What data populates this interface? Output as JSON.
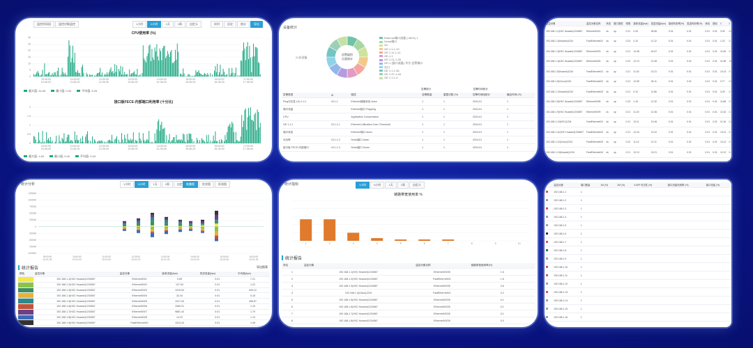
{
  "panel_cpu": {
    "top_tabs": [
      "监控时间段",
      "监控对象监控"
    ],
    "range_tabs": [
      "1小时",
      "6小时",
      "1天",
      "1周",
      "自定义"
    ],
    "range_active": 1,
    "right_tabs": [
      "实时",
      "历史",
      "统计",
      "导出"
    ],
    "chart1_title": "CPU使用率 (%)",
    "chart2_title": "接口板FECE-内部端口利用率 (十分比)",
    "legend1": [
      "最大值: 24.45",
      "最小值: 0.00",
      "平均值: 6.29"
    ],
    "legend2": [
      "最大值: 1.69",
      "最小值: 0.00",
      "平均值: 0.09"
    ],
    "xticks": [
      "10:00:00\n10-06-00",
      "11:00:00\n11-06-00",
      "12:00:00\n12-06-00",
      "13:00:00\n13-06-00",
      "14:00:00\n14-06-00",
      "15:00:00\n15-06-00",
      "16:00:00\n16-06-00",
      "17:00:00\n17-06-00"
    ],
    "y1ticks": [
      "30",
      "25",
      "20",
      "15",
      "10",
      "5",
      "0"
    ],
    "y2ticks": [
      "2",
      "1.5",
      "1",
      "0.5",
      "0"
    ],
    "colors": {
      "bar": "#1fa884",
      "tab_active": "#2a9fd6"
    }
  },
  "panel_donut": {
    "title": "设备统计",
    "center_label": "告警级别\n分类统计",
    "left_label": "21台设备",
    "legend": [
      "Ethernet端口流量 (>80%) 1",
      "Serial端口",
      "Ge",
      "GE 1.1-1.10",
      "GE 1.11-1.12",
      "GE-1.1",
      "GE 1.21-1.28",
      "GE-1 (接口流量) 华为 告警端口",
      "光口",
      "GE 1.1-1.36",
      "GE 1.37-1.48",
      "GE 1.1-1.4"
    ],
    "colors": [
      "#6fc3a8",
      "#a9d7a4",
      "#cfe39a",
      "#f3c98a",
      "#f4a7a0",
      "#e39ac6",
      "#b59be0",
      "#94b6ea",
      "#8fd3e8",
      "#76c4c4",
      "#9bd0b6",
      "#c6e1a6"
    ],
    "table_header_groups": [
      "告警统计",
      "告警数据量",
      "告警时间统计"
    ],
    "table_headers": [
      "告警类型",
      "ID",
      "描述",
      "告警数量",
      "重复次数 (%)",
      "告警时间段统计",
      "最后时间 (%)"
    ],
    "rows": [
      [
        "Ping可达性 (%) 1.2.1",
        "10.1.1",
        "Ethernet链路状态 down",
        "1",
        "1",
        "2024-01",
        "1"
      ],
      [
        "端口流量",
        "",
        "Ethernet接口 Flapping",
        "1",
        "1",
        "2024-01",
        "1"
      ],
      [
        "CPU",
        "",
        "Application Compression",
        "1",
        "1",
        "2024-01",
        "1"
      ],
      [
        "GE 1.1.1",
        "10.1.1.1",
        "Ethernet-Utilization-Over-Threshold",
        "1",
        "1",
        "2024-01",
        "1"
      ],
      [
        "端口状态",
        "",
        "Ethernet端口 down",
        "1",
        "1",
        "2024-01",
        "1"
      ],
      [
        "光功率",
        "10.1.1.2",
        "Serial接口 down",
        "1",
        "1",
        "2024-01",
        "1"
      ],
      [
        "接口板 FECE-内部端口",
        "10.1.1.3",
        "Serial接口 Down",
        "1",
        "1",
        "2024-01",
        "1"
      ]
    ]
  },
  "panel_table": {
    "headers": [
      "监控对象",
      "监控对象名称",
      "状态",
      "端口类型",
      "带宽",
      "接收流量(bps)",
      "发送流量(bps)",
      "接收利用率(%)",
      "发送利用率(%)",
      "丢包",
      "错包",
      "1",
      "2",
      "3",
      "4"
    ],
    "rows": [
      [
        "192.168.1.1(H3C Huawei)1234567",
        "Ethernet0/0/1",
        "ok",
        "up",
        "0.21",
        "0.26",
        "28.56",
        "0.01",
        "0.01",
        "0.01",
        "0.01",
        "3.09",
        "0.01"
      ],
      [
        "192.168.1.2(Huawei)1234",
        "FastEthernet0/1",
        "ok",
        "up",
        "0.23",
        "0.10",
        "11.12",
        "0.01",
        "0.01",
        "0.01",
        "0.01",
        "1.22",
        "0.13"
      ],
      [
        "192.168.1.3(H3C Huawei)1234567",
        "Ethernet0/0/3",
        "ok",
        "up",
        "0.21",
        "14.48",
        "44.57",
        "0.01",
        "0.01",
        "0.01",
        "0.01",
        "11.06",
        "0.13"
      ],
      [
        "192.168.1.4(H3C Huawei)1234567",
        "Ethernet0/0/4",
        "ok",
        "up",
        "0.22",
        "12.13",
        "12.45",
        "0.01",
        "0.01",
        "0.01",
        "0.01",
        "21.80",
        "11.22"
      ],
      [
        "192.168.1.5(Huawei)1234",
        "FastEthernet0/1",
        "ok",
        "up",
        "0.21",
        "11.03",
        "13.21",
        "0.01",
        "0.01",
        "0.01",
        "0.01",
        "10.13",
        "0.17"
      ],
      [
        "192.168.1.6(Cisco)1234",
        "FastEthernet0/2",
        "ok",
        "up",
        "0.21",
        "12.59",
        "26.11",
        "0.01",
        "0.01",
        "0.01",
        "0.01",
        "3.77",
        "0.02"
      ],
      [
        "192.168.1.7(Huawei)1234",
        "FastEthernet0/3",
        "ok",
        "up",
        "0.21",
        "0.10",
        "11.86",
        "0.01",
        "0.01",
        "0.01",
        "0.01",
        "3.49",
        "0.12"
      ],
      [
        "192.168.1.8(H3C Huawei)1234567",
        "Ethernet0/0/8",
        "ok",
        "up",
        "0.23",
        "1.15",
        "12.32",
        "0.01",
        "0.01",
        "0.01",
        "0.01",
        "11.88",
        "0.16"
      ],
      [
        "192.168.1.9(H3C Huawei)1234567",
        "Ethernet0/0/9",
        "ok",
        "up",
        "0.21",
        "11.20",
        "12.36",
        "0.01",
        "0.01",
        "0.01",
        "0.01",
        "12.32",
        "0.17"
      ],
      [
        "192.168.1.10(H3C)1234",
        "FastEthernet0/1",
        "ok",
        "up",
        "0.21",
        "13.11",
        "10.46",
        "0.01",
        "0.01",
        "0.01",
        "0.01",
        "11.16",
        "0.23"
      ],
      [
        "192.168.1.11(H3C Huawei)1234567",
        "FastEthernet0/2",
        "ok",
        "up",
        "0.21",
        "12.44",
        "12.02",
        "0.01",
        "0.01",
        "0.01",
        "0.01",
        "13.12",
        "0.11"
      ],
      [
        "192.168.1.12(Cisco)1234",
        "FastEthernet0/3",
        "ok",
        "up",
        "0.22",
        "11.14",
        "12.11",
        "0.01",
        "0.01",
        "0.01",
        "0.01",
        "13.12",
        "0.11"
      ],
      [
        "192.168.1.13(Huawei)1234",
        "FastEthernet0/4",
        "ok",
        "up",
        "0.21",
        "12.13",
        "13.21",
        "0.01",
        "0.01",
        "0.01",
        "0.01",
        "12.12",
        "0.12"
      ]
    ]
  },
  "panel_stack": {
    "title": "统计分析",
    "tabs": [
      "1小时",
      "6小时",
      "1天",
      "1周",
      "自定义"
    ],
    "tabs_active": 1,
    "right_tabs": [
      "堆叠图",
      "柱状图",
      "折线图"
    ],
    "yticks": [
      "12500M",
      "10000M",
      "7500M",
      "5000M",
      "2500M",
      "0",
      "-2500M",
      "-5000M",
      "-7500M",
      "-10000M"
    ],
    "xticks": [
      "09:00:00\n10-01-00",
      "10:00:00\n10-01-00",
      "11:00:00\n10-01-00",
      "12:00:00\n10-01-00",
      "13:00:00\n10-01-00",
      "14:00:00\n10-01-00",
      "15:00:00\n10-01-00",
      "16:00:00\n10-01-00"
    ],
    "section_title": "统计报告",
    "export_label": "导出报表",
    "headers": [
      "颜色",
      "监控对象",
      "监控对象",
      "接收流量(bps)",
      "发送流量(bps)",
      "平均值(bps)"
    ],
    "rows": [
      [
        "192.168.1.1(H3C Huawei)1234567",
        "Ethernet0/0/1",
        "0.65",
        "0.01",
        "7.21"
      ],
      [
        "192.168.1.2(H3C Huawei)1234567",
        "Ethernet0/0/2",
        "127.54",
        "0.01",
        "1.22"
      ],
      [
        "192.168.1.3(H3C Huawei)1234567",
        "Ethernet0/0/3",
        "1015.54",
        "0.01",
        "549.12"
      ],
      [
        "192.168.1.4(H3C Huawei)1234567",
        "Ethernet0/0/4",
        "32.44",
        "0.01",
        "5.18"
      ],
      [
        "192.168.1.5(H3C Huawei)1234567",
        "Ethernet0/0/5",
        "1017.54",
        "0.01",
        "456.57"
      ],
      [
        "192.168.1.6(H3C Huawei)1234567",
        "Ethernet0/0/6",
        "1569.21",
        "0.01",
        "1.19"
      ],
      [
        "192.168.1.7(H3C Huawei)1234567",
        "Ethernet0/0/7",
        "9881.44",
        "0.01",
        "1.79"
      ],
      [
        "192.168.1.8(H3C Huawei)1234567",
        "Ethernet0/0/8",
        "14.22",
        "0.01",
        "1.13"
      ],
      [
        "192.168.1.9(H3C Huawei)1234567",
        "FastEthernet0/1",
        "1013.44",
        "0.01",
        "1.08"
      ]
    ],
    "colors": [
      "#f2e84a",
      "#8bc34a",
      "#3f8f5a",
      "#e8b23a",
      "#2c8a8a",
      "#c0553a",
      "#6b3f8a",
      "#3a6bb5",
      "#333333"
    ]
  },
  "panel_bar": {
    "title": "统计指标",
    "tabs": [
      "1小时",
      "6小时",
      "1天",
      "1周",
      "自定义"
    ],
    "tabs_active": 0,
    "chart_title": "链路带宽使用率 %",
    "yticks": [
      "100",
      "80",
      "60",
      "40",
      "20",
      "0"
    ],
    "section_title": "统计报告",
    "headers": [
      "排名",
      "监控对象",
      "监控对象名称",
      "链路带宽使用率(%)"
    ],
    "rows": [
      [
        "1",
        "192.168.1.1(H3C Huawei)1234567",
        "Ethernet0/0/28",
        "1.6"
      ],
      [
        "2",
        "192.168.1.2(H3C Huawei)1234567",
        "FastEthernet0/1",
        "1.6"
      ],
      [
        "3",
        "192.168.1.3(H3C Huawei)1234567",
        "Ethernet0/0/28",
        "0.6"
      ],
      [
        "4",
        "192.168.1.4(Cisco)1234",
        "FastEthernet0/1",
        "0.2"
      ],
      [
        "5",
        "192.168.1.5(H3C Huawei)1234567",
        "Ethernet0/0/28",
        "0.1"
      ],
      [
        "6",
        "192.168.1.6(H3C Huawei)1234567",
        "Ethernet0/0/28",
        "0.1"
      ],
      [
        "7",
        "192.168.1.7(H3C Huawei)1234567",
        "Ethernet0/0/28",
        "0.1"
      ],
      [
        "8",
        "192.168.1.8(H3C Huawei)1234567",
        "Ethernet0/0/28",
        "0.0"
      ]
    ]
  },
  "panel_status": {
    "headers": [
      "监控对象",
      "端口数量",
      "1M (%)",
      "2M (%)",
      "ICMP 可达性 (%)",
      "接口流量利用率 (%)",
      "接口流量 (%)"
    ],
    "rows": [
      [
        "192.168.1.1",
        "1",
        "",
        "",
        "",
        "",
        ""
      ],
      [
        "192.168.1.2",
        "1",
        "",
        "",
        "",
        "",
        ""
      ],
      [
        "192.168.1.3",
        "1",
        "",
        "",
        "",
        "",
        ""
      ],
      [
        "192.168.1.4",
        "1",
        "",
        "",
        "",
        "",
        ""
      ],
      [
        "192.168.1.5",
        "1",
        "",
        "",
        "",
        "",
        ""
      ],
      [
        "192.168.1.6",
        "1",
        "",
        "",
        "",
        "",
        ""
      ],
      [
        "192.168.1.7",
        "1",
        "",
        "",
        "",
        "",
        ""
      ],
      [
        "192.168.1.8",
        "1",
        "",
        "",
        "",
        "",
        ""
      ],
      [
        "192.168.1.9",
        "1",
        "",
        "",
        "",
        "",
        ""
      ],
      [
        "192.168.1.10",
        "1",
        "",
        "",
        "",
        "",
        ""
      ],
      [
        "192.168.1.11",
        "1",
        "",
        "",
        "",
        "",
        ""
      ],
      [
        "192.168.1.12",
        "1",
        "",
        "",
        "",
        "",
        ""
      ],
      [
        "192.168.1.13",
        "1",
        "",
        "",
        "",
        "",
        ""
      ],
      [
        "192.168.1.14",
        "1",
        "",
        "",
        "",
        "",
        ""
      ],
      [
        "192.168.1.15",
        "1",
        "",
        "",
        "",
        "",
        ""
      ],
      [
        "192.168.1.16",
        "1",
        "",
        "",
        "",
        "",
        ""
      ]
    ],
    "dot_colors": [
      "#d9534f",
      "#9e9e9e",
      "#d9534f",
      "#9e9e9e",
      "#9e9e9e",
      "#333333",
      "#d9534f",
      "#2e7d32",
      "#9e9e9e",
      "#d9534f",
      "#d9534f",
      "#9e9e9e",
      "#d9534f",
      "#9e9e9e",
      "#9e9e9e",
      "#9e9e9e"
    ]
  },
  "chart_data": [
    {
      "type": "bar",
      "title": "链路带宽使用率 %",
      "categories": [
        "1",
        "2",
        "3",
        "4",
        "5",
        "6",
        "7",
        "8",
        "9",
        "10"
      ],
      "values": [
        1.6,
        1.6,
        0.6,
        0.2,
        0.1,
        0.1,
        0.1,
        0.0,
        0.0,
        0.0
      ],
      "xlabel": "",
      "ylabel": ""
    }
  ]
}
